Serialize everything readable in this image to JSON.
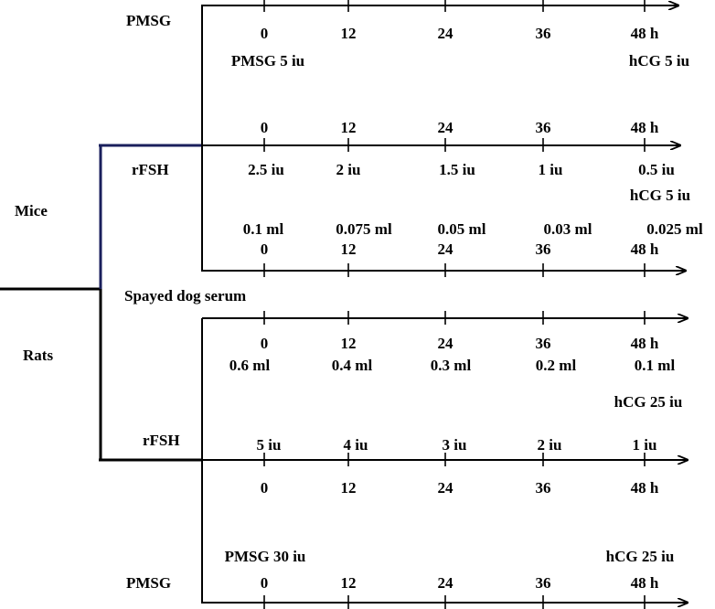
{
  "species": {
    "mice": "Mice",
    "rats": "Rats"
  },
  "protocols": [
    {
      "name": "PMSG",
      "times": [
        "0",
        "12",
        "24",
        "36",
        "48 h"
      ],
      "doses": [
        "PMSG 5 iu",
        "hCG 5 iu"
      ]
    },
    {
      "name": "rFSH",
      "times": [
        "0",
        "12",
        "24",
        "36",
        "48 h"
      ],
      "doses": [
        "2.5 iu",
        "2 iu",
        "1.5 iu",
        "1 iu",
        "0.5 iu"
      ],
      "hcg": "hCG 5 iu"
    },
    {
      "name": "Spayed dog serum",
      "times": [
        "0",
        "12",
        "24",
        "36",
        "48 h"
      ],
      "doses": [
        "0.1 ml",
        "0.075 ml",
        "0.05 ml",
        "0.03 ml",
        "0.025 ml"
      ]
    },
    {
      "name": "",
      "times": [
        "0",
        "12",
        "24",
        "36",
        "48 h"
      ],
      "doses": [
        "0.6 ml",
        "0.4 ml",
        "0.3 ml",
        "0.2 ml",
        "0.1 ml"
      ],
      "hcg": "hCG 25 iu"
    },
    {
      "name": "rFSH",
      "times": [
        "0",
        "12",
        "24",
        "36",
        "48 h"
      ],
      "doses": [
        "5 iu",
        "4 iu",
        "3 iu",
        "2 iu",
        "1 iu"
      ]
    },
    {
      "name": "PMSG",
      "times": [
        "0",
        "12",
        "24",
        "36",
        "48 h"
      ],
      "doses": [
        "PMSG 30 iu",
        "hCG 25 iu"
      ]
    }
  ]
}
